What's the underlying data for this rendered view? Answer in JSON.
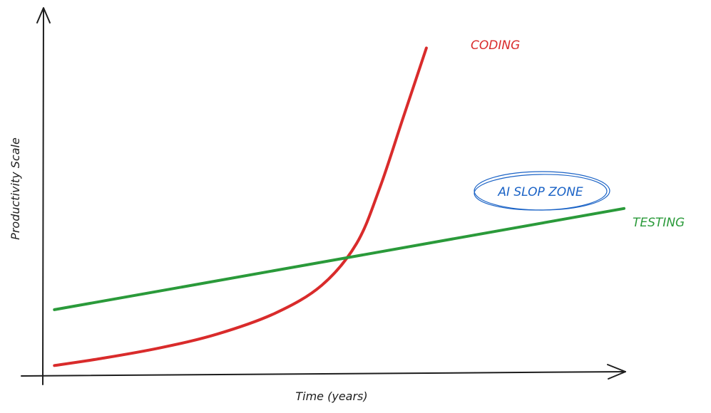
{
  "chart_data": {
    "type": "line",
    "title": "",
    "xlabel": "Time (years)",
    "ylabel": "Productivity Scale",
    "xlim": [
      0,
      100
    ],
    "ylim": [
      0,
      100
    ],
    "grid": false,
    "legend": "none",
    "series": [
      {
        "name": "CODING",
        "color": "#d92b2b",
        "points": [
          [
            2,
            3
          ],
          [
            10,
            5
          ],
          [
            20,
            8
          ],
          [
            30,
            12
          ],
          [
            40,
            18
          ],
          [
            48,
            26
          ],
          [
            54,
            38
          ],
          [
            58,
            54
          ],
          [
            62,
            74
          ],
          [
            66,
            94
          ]
        ]
      },
      {
        "name": "TESTING",
        "color": "#2a9a3a",
        "points": [
          [
            2,
            19
          ],
          [
            100,
            48
          ]
        ]
      }
    ],
    "annotations": [
      {
        "text": "AI SLOP ZONE",
        "color": "#1b63c6",
        "x": 75,
        "y": 58
      }
    ]
  }
}
